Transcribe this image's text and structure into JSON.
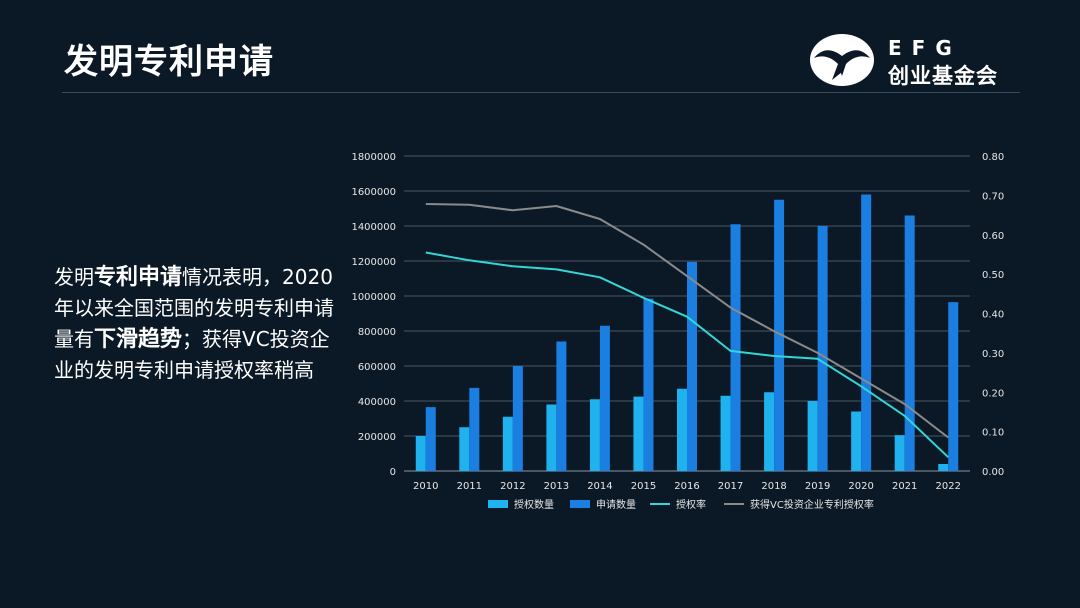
{
  "header": {
    "title": "发明专利申请",
    "logo_text": "EFG",
    "logo_subtitle": "创业基金会"
  },
  "body": {
    "p1": "发明",
    "b1": "专利申请",
    "p2": "情况表明，2020年以来全国范围的发明专利申请量有",
    "b2": "下滑趋势",
    "p3": "；获得VC投资企业的发明专利申请授权率稍高"
  },
  "colors": {
    "background": "#0b1826",
    "granted_bar": "#1fb2ee",
    "applied_bar": "#1a7fe0",
    "rate_line": "#33d6d6",
    "vc_rate_line": "#8a8a8a",
    "grid": "#4a5866",
    "axis_text": "#e6e6e6"
  },
  "icons": {
    "logo": "eagle-logo-icon"
  },
  "chart_data": {
    "type": "bar",
    "categories": [
      "2010",
      "2011",
      "2012",
      "2013",
      "2014",
      "2015",
      "2016",
      "2017",
      "2018",
      "2019",
      "2020",
      "2021",
      "2022"
    ],
    "series": [
      {
        "name": "授权数量",
        "type": "bar",
        "axis": "left",
        "values": [
          200000,
          250000,
          310000,
          380000,
          410000,
          425000,
          470000,
          430000,
          450000,
          400000,
          340000,
          205000,
          40000
        ]
      },
      {
        "name": "申请数量",
        "type": "bar",
        "axis": "left",
        "values": [
          365000,
          475000,
          600000,
          740000,
          830000,
          985000,
          1195000,
          1410000,
          1550000,
          1400000,
          1580000,
          1460000,
          965000
        ]
      },
      {
        "name": "授权率",
        "type": "line",
        "axis": "right",
        "values": [
          0.555,
          0.535,
          0.52,
          0.512,
          0.492,
          0.44,
          0.392,
          0.305,
          0.292,
          0.285,
          0.215,
          0.14,
          0.035
        ]
      },
      {
        "name": "获得VC投资企业专利授权率",
        "type": "line",
        "axis": "right",
        "values": [
          0.678,
          0.676,
          0.662,
          0.673,
          0.64,
          0.575,
          0.495,
          0.415,
          0.355,
          0.3,
          0.235,
          0.17,
          0.085
        ]
      }
    ],
    "ylim_left": [
      0,
      1800000
    ],
    "ylim_right": [
      0,
      0.8
    ],
    "yticks_left": [
      "0",
      "200000",
      "400000",
      "600000",
      "800000",
      "1000000",
      "1200000",
      "1400000",
      "1600000",
      "1800000"
    ],
    "yticks_right": [
      "0.00",
      "0.10",
      "0.20",
      "0.30",
      "0.40",
      "0.50",
      "0.60",
      "0.70",
      "0.80"
    ],
    "grid": true,
    "legend": "bottom"
  }
}
